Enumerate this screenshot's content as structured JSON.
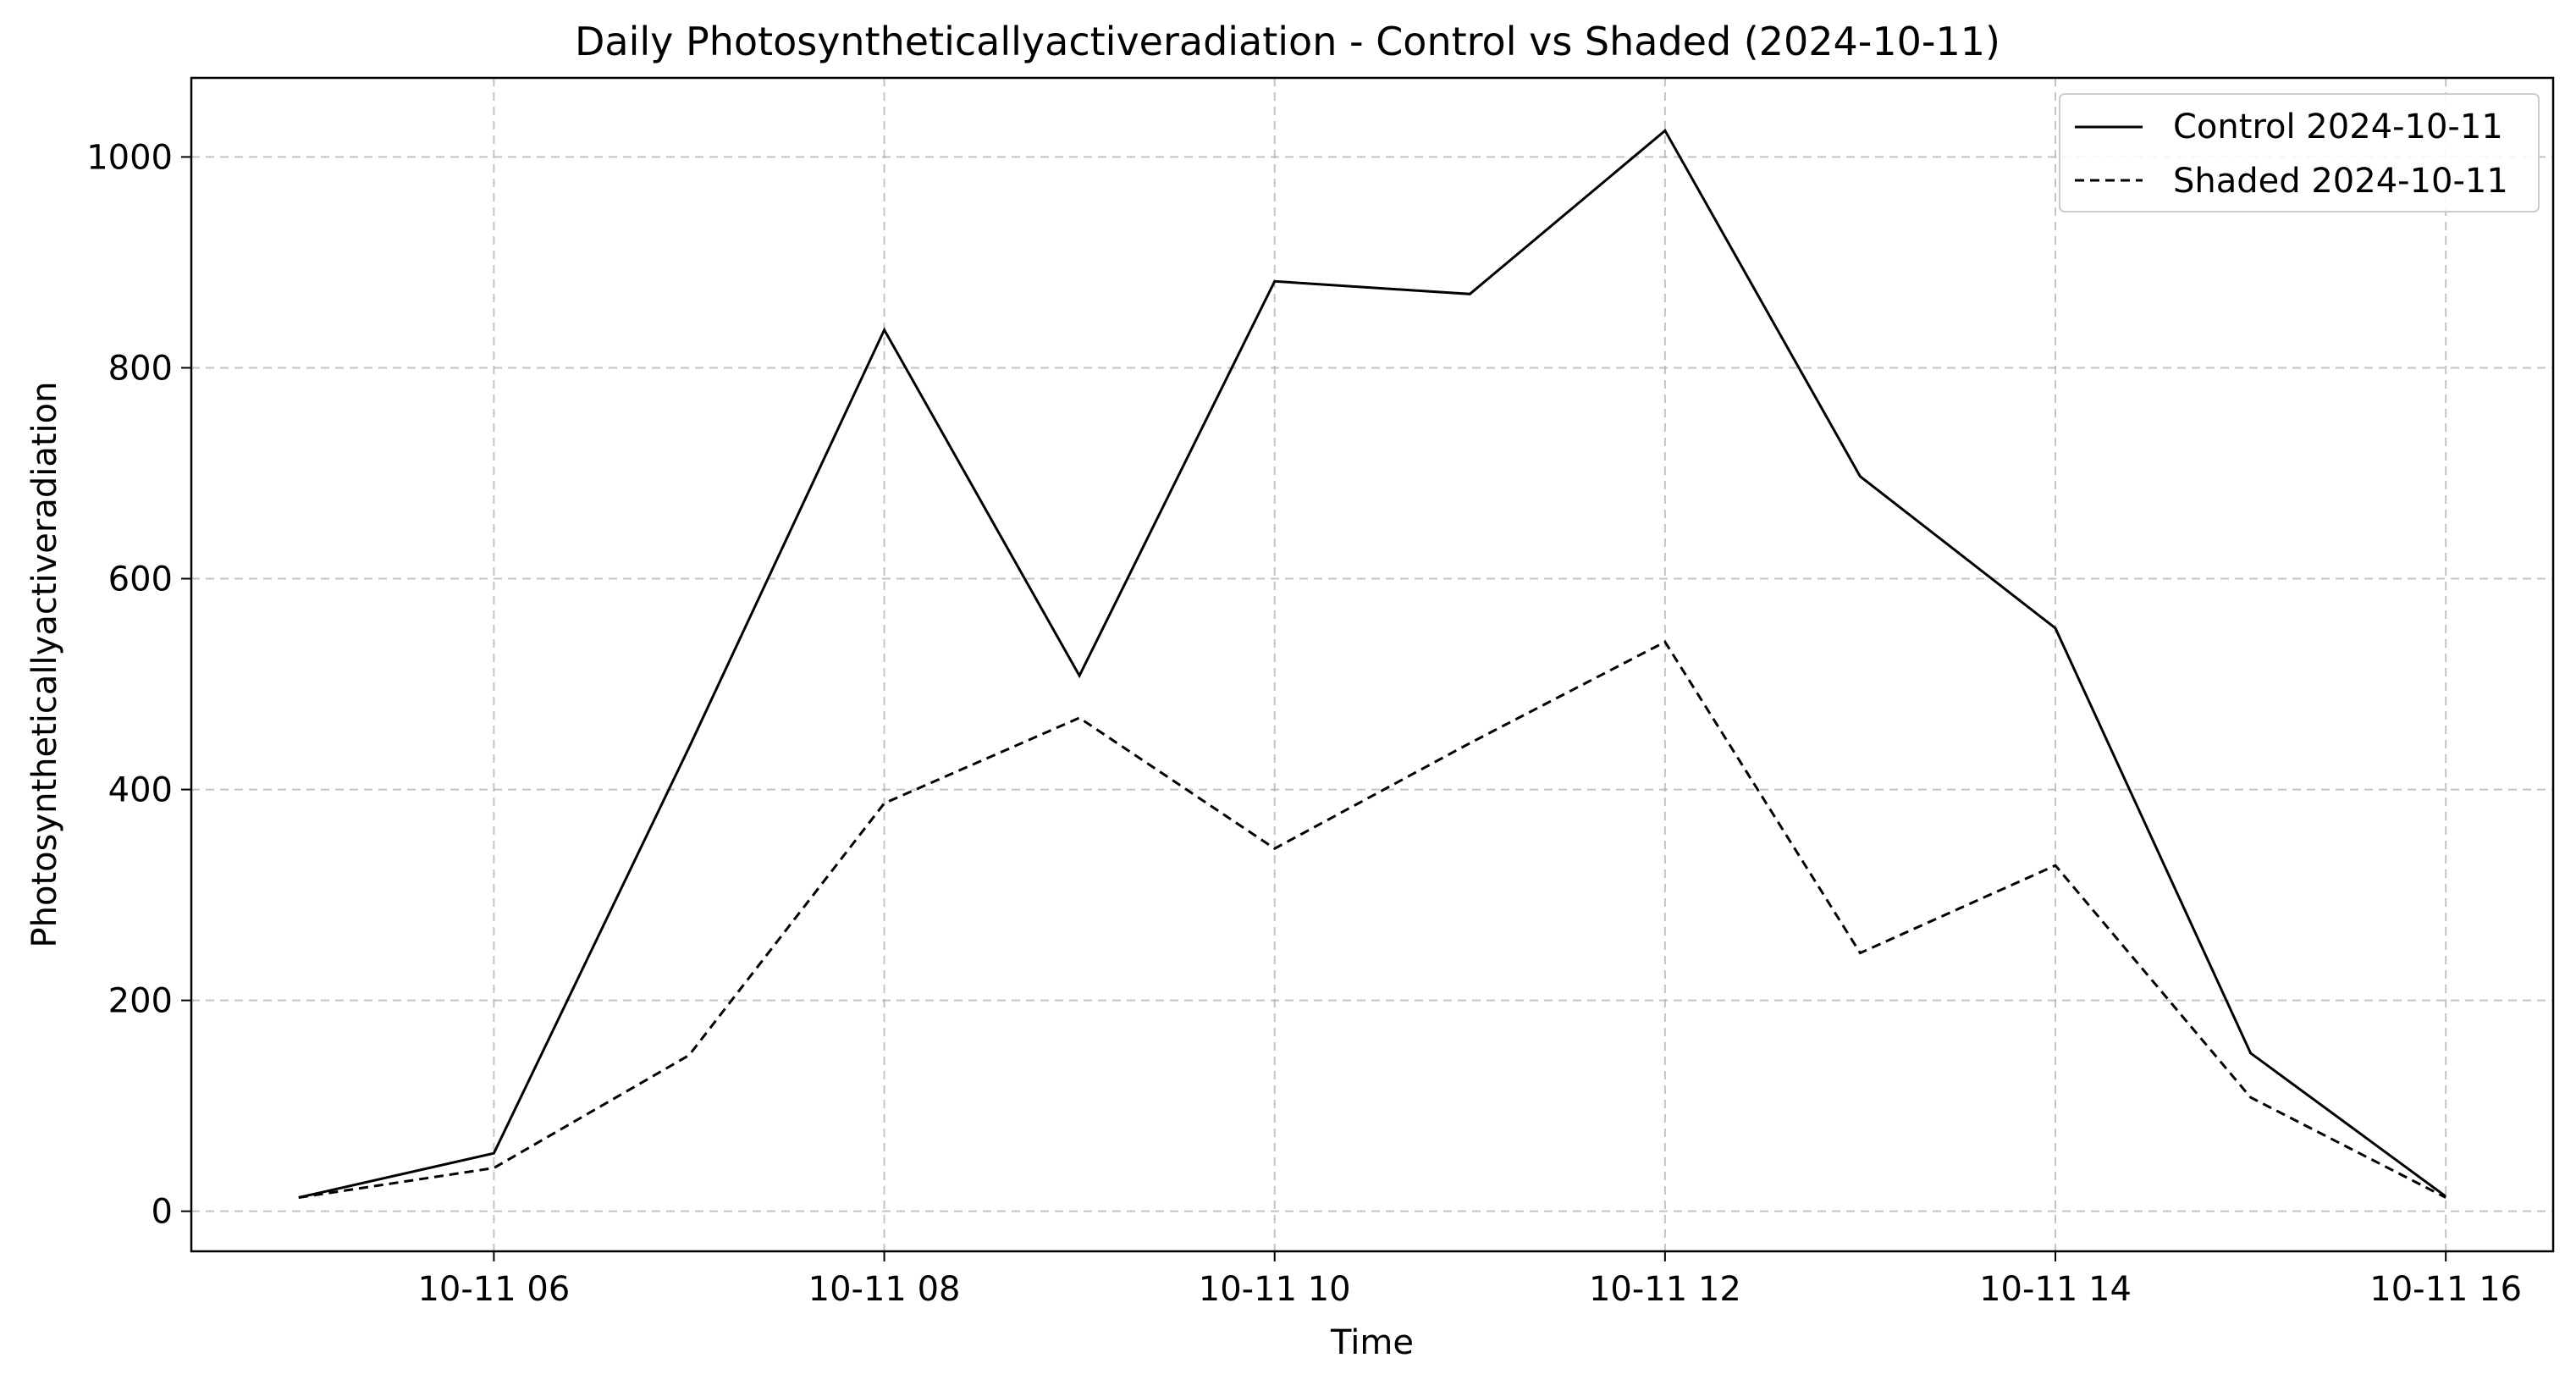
{
  "chart_data": {
    "type": "line",
    "title": "Daily Photosyntheticallyactiveradiation - Control vs Shaded (2024-10-11)",
    "xlabel": "Time",
    "ylabel": "Photosyntheticallyactiveradiation",
    "x": [
      "10-11 05",
      "10-11 06",
      "10-11 07",
      "10-11 08",
      "10-11 09",
      "10-11 10",
      "10-11 11",
      "10-11 12",
      "10-11 13",
      "10-11 14",
      "10-11 15",
      "10-11 16"
    ],
    "x_hours": [
      5,
      6,
      7,
      8,
      9,
      10,
      11,
      12,
      13,
      14,
      15,
      16
    ],
    "xlim": [
      4.45,
      16.55
    ],
    "ylim": [
      -38,
      1075
    ],
    "x_ticks": [
      6,
      8,
      10,
      12,
      14,
      16
    ],
    "x_tick_labels": [
      "10-11 06",
      "10-11 08",
      "10-11 10",
      "10-11 12",
      "10-11 14",
      "10-11 16"
    ],
    "y_ticks": [
      0,
      200,
      400,
      600,
      800,
      1000
    ],
    "y_tick_labels": [
      "0",
      "200",
      "400",
      "600",
      "800",
      "1000"
    ],
    "grid": true,
    "legend_position": "top-right",
    "series": [
      {
        "name": "Control 2024-10-11",
        "line_style": "solid",
        "color": "#000000",
        "values": [
          13,
          55,
          440,
          836,
          508,
          882,
          870,
          1025,
          697,
          553,
          150,
          14
        ]
      },
      {
        "name": "Shaded 2024-10-11",
        "line_style": "dashed",
        "color": "#000000",
        "values": [
          13,
          41,
          148,
          387,
          468,
          344,
          444,
          540,
          245,
          328,
          108,
          13
        ]
      }
    ]
  }
}
